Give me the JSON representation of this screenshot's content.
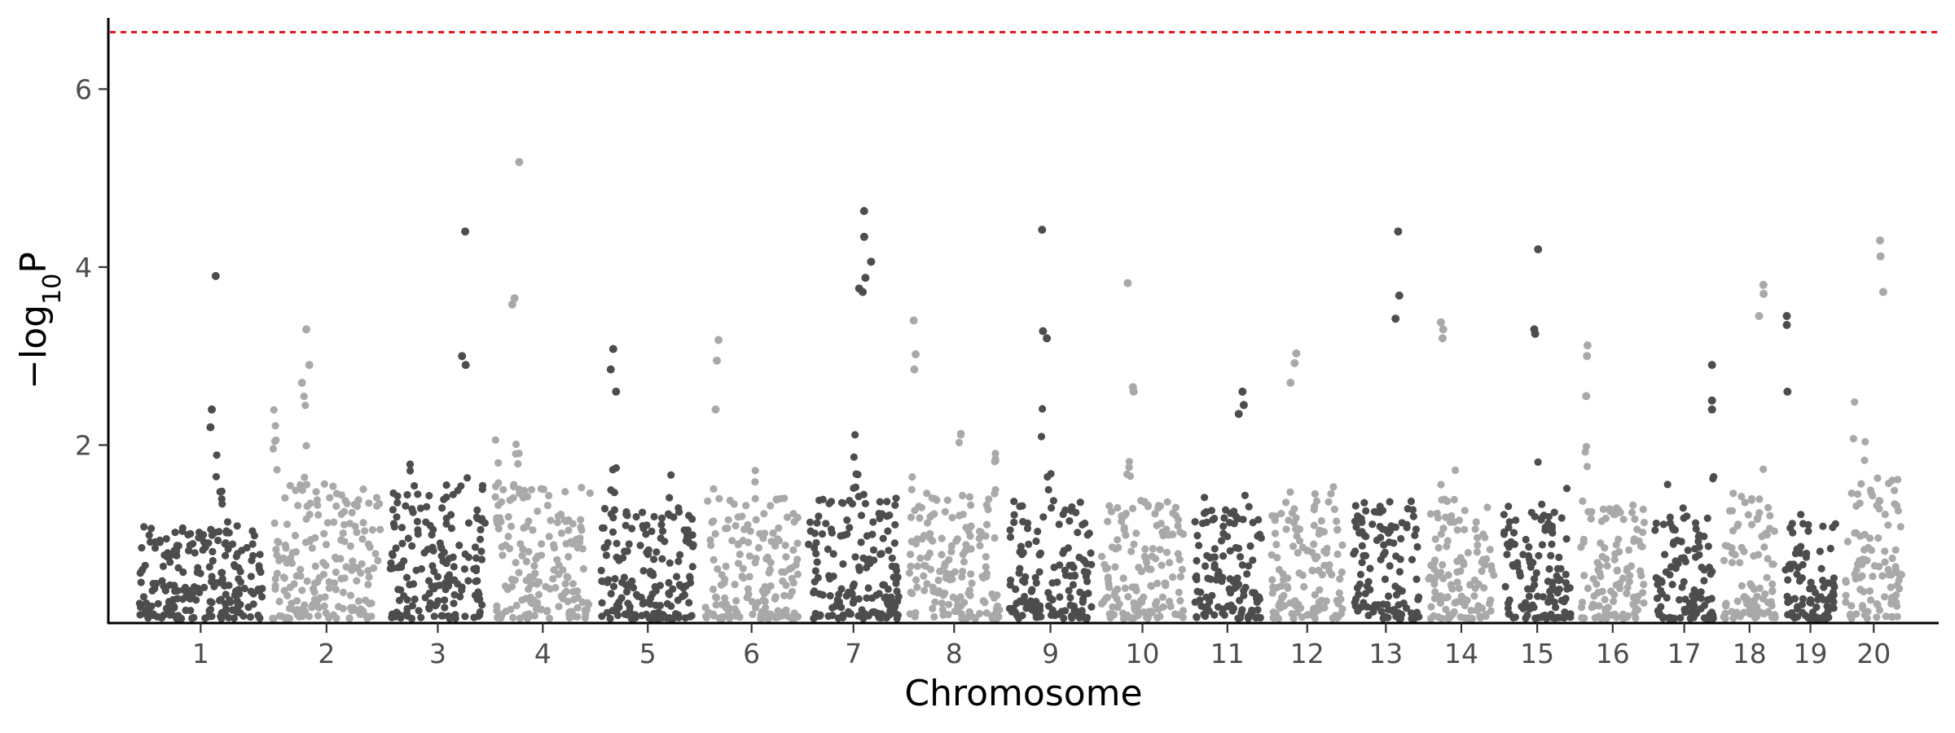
{
  "chart_data": {
    "type": "scatter",
    "xlabel": "Chromosome",
    "ylabel": {
      "prefix": "−log",
      "subscript": "10",
      "suffix": "P"
    },
    "ylim": [
      0,
      6.8
    ],
    "y_ticks": [
      2,
      4,
      6
    ],
    "significance_threshold": 6.64,
    "threshold_color": "#e41a1c",
    "colors": {
      "odd": "#4d4d4d",
      "even": "#a9a9a9"
    },
    "grid": false,
    "legend": "none",
    "chromosomes": [
      {
        "label": "1",
        "length": 158,
        "base_max": 1.9,
        "top_hits": [
          3.9,
          2.4,
          2.2
        ]
      },
      {
        "label": "2",
        "length": 137,
        "base_max": 2.8,
        "top_hits": [
          3.3,
          2.9,
          2.7
        ]
      },
      {
        "label": "3",
        "length": 121,
        "base_max": 2.9,
        "top_hits": [
          4.4,
          3.0,
          2.9
        ]
      },
      {
        "label": "4",
        "length": 121,
        "base_max": 2.7,
        "top_hits": [
          5.18,
          3.65,
          3.58
        ]
      },
      {
        "label": "5",
        "length": 121,
        "base_max": 2.3,
        "top_hits": [
          3.08,
          2.85,
          2.6
        ]
      },
      {
        "label": "6",
        "length": 118,
        "base_max": 2.5,
        "top_hits": [
          3.18,
          2.95,
          2.4
        ]
      },
      {
        "label": "7",
        "length": 116,
        "base_max": 2.5,
        "top_hits": [
          4.63,
          4.34,
          4.06,
          3.88,
          3.76,
          3.72
        ]
      },
      {
        "label": "8",
        "length": 115,
        "base_max": 2.6,
        "top_hits": [
          3.4,
          3.02,
          2.85
        ]
      },
      {
        "label": "9",
        "length": 105,
        "base_max": 2.5,
        "top_hits": [
          4.42,
          3.28,
          3.2
        ]
      },
      {
        "label": "10",
        "length": 104,
        "base_max": 2.4,
        "top_hits": [
          3.82,
          2.65,
          2.6
        ]
      },
      {
        "label": "11",
        "length": 87,
        "base_max": 2.3,
        "top_hits": [
          2.6,
          2.45,
          2.35
        ]
      },
      {
        "label": "12",
        "length": 91,
        "base_max": 2.6,
        "top_hits": [
          3.03,
          2.92,
          2.7
        ]
      },
      {
        "label": "13",
        "length": 84,
        "base_max": 2.4,
        "top_hits": [
          4.4,
          3.68,
          3.42
        ]
      },
      {
        "label": "14",
        "length": 83,
        "base_max": 2.5,
        "top_hits": [
          3.38,
          3.3,
          3.2
        ]
      },
      {
        "label": "15",
        "length": 85,
        "base_max": 2.3,
        "top_hits": [
          4.2,
          3.3,
          3.25
        ]
      },
      {
        "label": "16",
        "length": 82,
        "base_max": 2.4,
        "top_hits": [
          3.12,
          3.0,
          2.55
        ]
      },
      {
        "label": "17",
        "length": 75,
        "base_max": 2.3,
        "top_hits": [
          2.9,
          2.5,
          2.4
        ]
      },
      {
        "label": "18",
        "length": 66,
        "base_max": 2.5,
        "top_hits": [
          3.8,
          3.7,
          3.45
        ]
      },
      {
        "label": "19",
        "length": 64,
        "base_max": 2.0,
        "top_hits": [
          3.45,
          3.35,
          2.6
        ]
      },
      {
        "label": "20",
        "length": 72,
        "base_max": 2.9,
        "top_hits": [
          4.3,
          4.12,
          3.72
        ]
      }
    ]
  }
}
